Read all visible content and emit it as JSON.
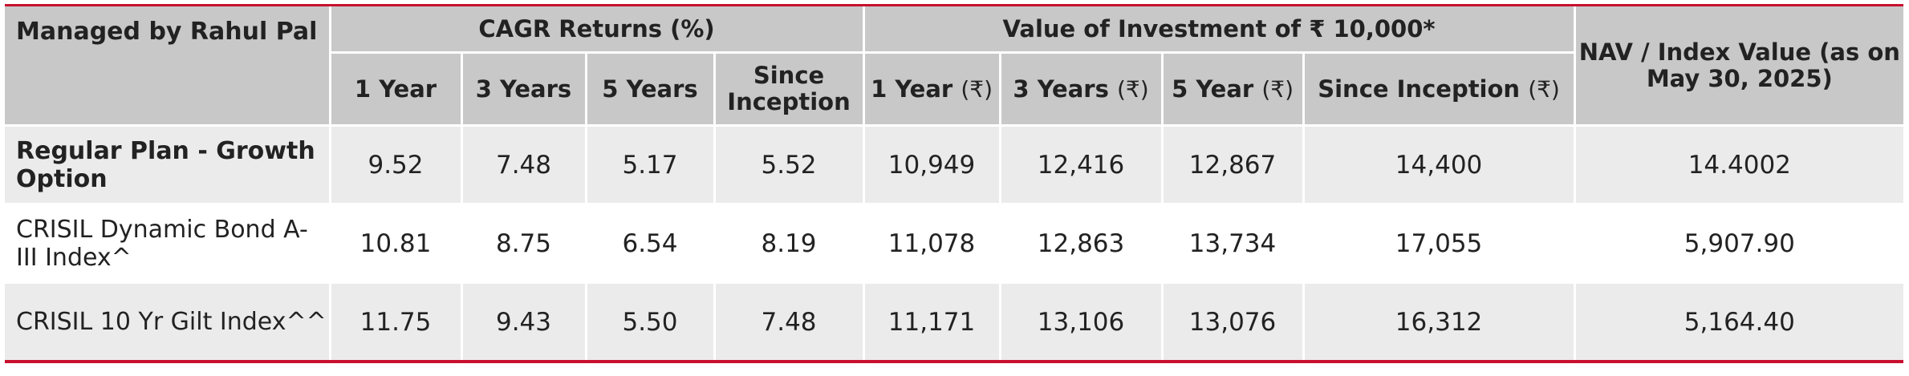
{
  "table": {
    "corner_label": "Managed by Rahul Pal",
    "group_cagr": "CAGR Returns (%)",
    "group_value": "Value of Investment of ₹ 10,000*",
    "nav_header": "NAV / Index Value (as on May 30, 2025)",
    "cagr_columns": [
      "1 Year",
      "3 Years",
      "5 Years",
      "Since Inception"
    ],
    "value_columns": [
      {
        "label": "1 Year",
        "unit": "(₹)"
      },
      {
        "label": "3 Years",
        "unit": "(₹)"
      },
      {
        "label": "5 Year",
        "unit": "(₹)"
      },
      {
        "label": "Since Inception",
        "unit": "(₹)"
      }
    ],
    "rows": [
      {
        "label": "Regular Plan - Growth Option",
        "cagr": [
          "9.52",
          "7.48",
          "5.17",
          "5.52"
        ],
        "value": [
          "10,949",
          "12,416",
          "12,867",
          "14,400"
        ],
        "nav": "14.4002"
      },
      {
        "label": "CRISIL Dynamic Bond A-III Index^",
        "cagr": [
          "10.81",
          "8.75",
          "6.54",
          "8.19"
        ],
        "value": [
          "11,078",
          "12,863",
          "13,734",
          "17,055"
        ],
        "nav": "5,907.90"
      },
      {
        "label": "CRISIL 10 Yr Gilt Index^^",
        "cagr": [
          "11.75",
          "9.43",
          "5.50",
          "7.48"
        ],
        "value": [
          "11,171",
          "13,106",
          "13,076",
          "16,312"
        ],
        "nav": "5,164.40"
      }
    ]
  },
  "colors": {
    "accent_line": "#c8102e",
    "header_bg": "#c8c8c8",
    "row_shade": "#ebebeb"
  }
}
